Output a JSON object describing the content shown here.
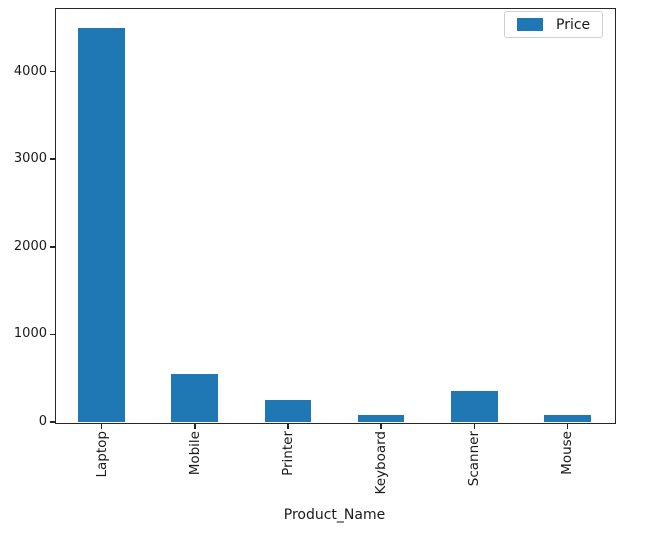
{
  "chart_data": {
    "type": "bar",
    "title": "",
    "categories": [
      "Laptop",
      "Mobile",
      "Printer",
      "Keyboard",
      "Scanner",
      "Mouse"
    ],
    "values": [
      4500,
      550,
      250,
      80,
      350,
      80
    ],
    "series": [
      {
        "name": "Price",
        "values": [
          4500,
          550,
          250,
          80,
          350,
          80
        ]
      }
    ],
    "xlabel": "Product_Name",
    "ylabel": "",
    "ylim": [
      0,
      4725
    ],
    "yticks": [
      0,
      1000,
      2000,
      3000,
      4000
    ],
    "x_tick_rotation": 90,
    "grid": false,
    "bar_color": "#1f77b4",
    "axis_color": "#262626",
    "legend": {
      "position": "upper right",
      "entries": [
        {
          "label": "Price",
          "color": "#1f77b4"
        }
      ]
    }
  }
}
